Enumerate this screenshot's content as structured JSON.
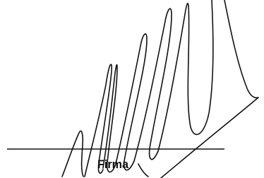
{
  "label": "Firma"
}
